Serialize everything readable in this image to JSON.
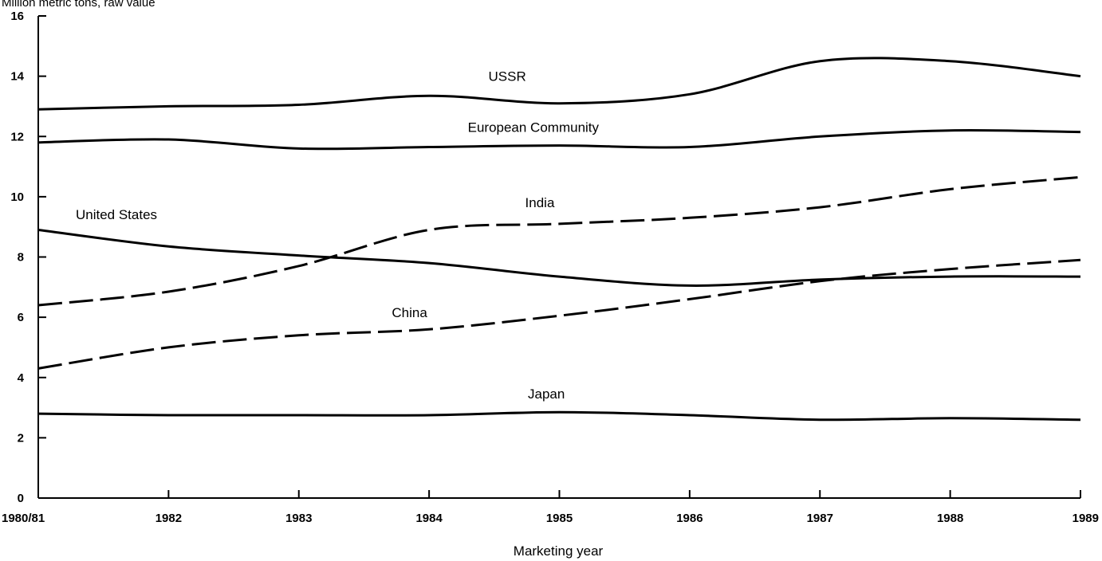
{
  "chart_data": {
    "type": "line",
    "title": "",
    "ylabel": "Million metric tons, raw value",
    "xlabel": "Marketing year",
    "categories": [
      "1980/81",
      "1982",
      "1983",
      "1984",
      "1985",
      "1986",
      "1987",
      "1988",
      "1989"
    ],
    "ylim": [
      0,
      16
    ],
    "yticks": [
      0,
      2,
      4,
      6,
      8,
      10,
      12,
      14,
      16
    ],
    "grid": false,
    "legend": "none",
    "series": [
      {
        "name": "USSR",
        "style": "solid",
        "values": [
          12.9,
          13.0,
          13.05,
          13.35,
          13.1,
          13.4,
          14.5,
          14.5,
          14.0
        ]
      },
      {
        "name": "European Community",
        "style": "solid",
        "values": [
          11.8,
          11.9,
          11.6,
          11.65,
          11.7,
          11.65,
          12.0,
          12.2,
          12.15
        ]
      },
      {
        "name": "India",
        "style": "dashed",
        "values": [
          6.4,
          6.85,
          7.7,
          8.9,
          9.1,
          9.3,
          9.65,
          10.25,
          10.65
        ]
      },
      {
        "name": "United States",
        "style": "solid",
        "values": [
          8.9,
          8.35,
          8.05,
          7.8,
          7.35,
          7.05,
          7.25,
          7.35,
          7.35
        ]
      },
      {
        "name": "China",
        "style": "dashed",
        "values": [
          4.3,
          5.0,
          5.4,
          5.6,
          6.05,
          6.6,
          7.2,
          7.6,
          7.9
        ]
      },
      {
        "name": "Japan",
        "style": "solid",
        "values": [
          2.8,
          2.75,
          2.75,
          2.75,
          2.85,
          2.75,
          2.6,
          2.65,
          2.6
        ]
      }
    ]
  }
}
